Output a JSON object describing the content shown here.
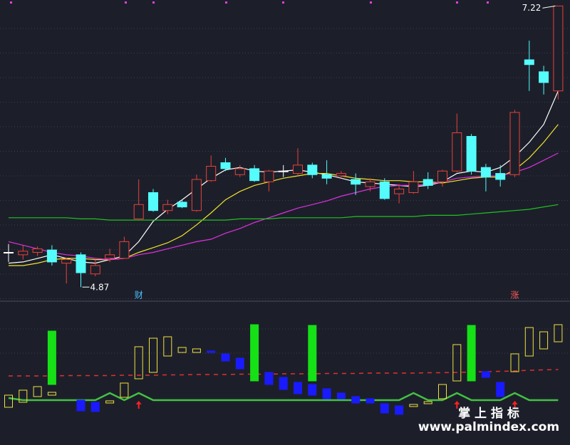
{
  "chart_data": [
    {
      "type": "candlestick",
      "ylim": [
        4.77,
        7.27
      ],
      "up_color": "#e8413a",
      "down_color": "#54fcfc",
      "flat_color": "#ffffff",
      "open": [
        5.16,
        5.14,
        5.16,
        5.18,
        5.07,
        5.14,
        4.98,
        5.11,
        5.11,
        5.44,
        5.66,
        5.51,
        5.58,
        5.51,
        5.76,
        5.91,
        5.81,
        5.86,
        5.75,
        5.84,
        5.82,
        5.89,
        5.81,
        5.8,
        5.77,
        5.71,
        5.75,
        5.65,
        5.66,
        5.77,
        5.75,
        5.84,
        6.13,
        5.87,
        5.82,
        5.81,
        6.77,
        6.67,
        6.51
      ],
      "high": [
        5.23,
        5.22,
        5.21,
        5.22,
        5.11,
        5.16,
        5.1,
        5.19,
        5.29,
        5.77,
        5.69,
        5.6,
        5.6,
        5.81,
        5.97,
        5.95,
        5.89,
        5.89,
        5.85,
        5.89,
        6.03,
        5.91,
        5.93,
        5.84,
        5.82,
        5.78,
        5.78,
        5.73,
        5.84,
        5.83,
        5.85,
        6.32,
        6.15,
        5.9,
        5.89,
        6.35,
        6.93,
        6.72,
        7.22
      ],
      "low": [
        5.08,
        5.1,
        5.13,
        5.05,
        4.9,
        4.87,
        4.96,
        5.08,
        5.11,
        5.44,
        5.5,
        5.48,
        5.53,
        5.5,
        5.75,
        5.84,
        5.79,
        5.75,
        5.67,
        5.79,
        5.8,
        5.78,
        5.73,
        5.78,
        5.64,
        5.67,
        5.6,
        5.57,
        5.65,
        5.69,
        5.71,
        5.83,
        5.81,
        5.67,
        5.71,
        5.79,
        6.51,
        6.48,
        6.44
      ],
      "close": [
        5.16,
        5.17,
        5.19,
        5.08,
        5.1,
        4.99,
        5.05,
        5.14,
        5.25,
        5.56,
        5.51,
        5.56,
        5.54,
        5.77,
        5.88,
        5.86,
        5.86,
        5.76,
        5.84,
        5.84,
        5.89,
        5.81,
        5.78,
        5.82,
        5.73,
        5.75,
        5.61,
        5.69,
        5.75,
        5.72,
        5.84,
        6.16,
        5.84,
        5.79,
        5.77,
        6.33,
        6.73,
        6.58,
        7.22
      ],
      "lines": [
        {
          "color": "#ffffff",
          "values": [
            5.07,
            5.08,
            5.11,
            5.14,
            5.11,
            5.08,
            5.07,
            5.1,
            5.13,
            5.25,
            5.42,
            5.52,
            5.6,
            5.69,
            5.78,
            5.85,
            5.87,
            5.84,
            5.83,
            5.84,
            5.85,
            5.83,
            5.81,
            5.78,
            5.75,
            5.74,
            5.73,
            5.72,
            5.71,
            5.72,
            5.75,
            5.82,
            5.84,
            5.83,
            5.87,
            5.96,
            6.08,
            6.23,
            6.51
          ]
        },
        {
          "color": "#f2e22a",
          "values": [
            5.05,
            5.05,
            5.07,
            5.1,
            5.11,
            5.11,
            5.1,
            5.1,
            5.11,
            5.16,
            5.2,
            5.24,
            5.3,
            5.39,
            5.49,
            5.6,
            5.67,
            5.72,
            5.75,
            5.78,
            5.8,
            5.82,
            5.82,
            5.8,
            5.78,
            5.77,
            5.76,
            5.76,
            5.75,
            5.75,
            5.74,
            5.76,
            5.78,
            5.79,
            5.79,
            5.85,
            5.95,
            6.08,
            6.23
          ]
        },
        {
          "color": "#e030e0",
          "values": [
            5.25,
            5.22,
            5.19,
            5.16,
            5.14,
            5.13,
            5.11,
            5.1,
            5.11,
            5.14,
            5.16,
            5.19,
            5.22,
            5.25,
            5.27,
            5.32,
            5.36,
            5.41,
            5.45,
            5.49,
            5.53,
            5.56,
            5.59,
            5.63,
            5.66,
            5.69,
            5.71,
            5.72,
            5.72,
            5.73,
            5.75,
            5.78,
            5.79,
            5.8,
            5.8,
            5.83,
            5.87,
            5.93,
            5.99
          ]
        },
        {
          "color": "#22c022",
          "values": [
            5.45,
            5.45,
            5.45,
            5.45,
            5.45,
            5.44,
            5.44,
            5.43,
            5.43,
            5.43,
            5.43,
            5.43,
            5.43,
            5.43,
            5.43,
            5.43,
            5.44,
            5.44,
            5.44,
            5.45,
            5.45,
            5.45,
            5.45,
            5.45,
            5.46,
            5.46,
            5.46,
            5.46,
            5.46,
            5.47,
            5.47,
            5.47,
            5.48,
            5.49,
            5.5,
            5.51,
            5.52,
            5.54,
            5.56
          ]
        }
      ],
      "high_label": 7.22,
      "high_index": 38,
      "low_label": 4.87,
      "low_index": 5,
      "annotations": [
        {
          "text": "财",
          "at": 9
        },
        {
          "text": "涨",
          "at": 35
        }
      ]
    },
    {
      "type": "bar",
      "ylim": [
        -1,
        2.6
      ],
      "bars": [
        {
          "color": "#f0e040",
          "hollow": true,
          "low": [
            -0.2,
            -0.06,
            0.1,
            0.14,
            null,
            null,
            null,
            -0.08,
            0.08,
            0.6,
            0.78,
            1.24,
            1.34,
            1.34,
            null,
            null,
            null,
            null,
            null,
            null,
            null,
            null,
            null,
            null,
            null,
            null,
            null,
            null,
            -0.18,
            -0.1,
            0.04,
            0.54,
            null,
            null,
            null,
            0.8,
            1.24,
            1.44,
            1.64
          ],
          "high": [
            0.14,
            0.28,
            0.38,
            0.22,
            null,
            null,
            null,
            -0.02,
            0.48,
            1.5,
            1.74,
            1.78,
            1.48,
            1.44,
            null,
            null,
            null,
            null,
            null,
            null,
            null,
            null,
            null,
            null,
            null,
            null,
            null,
            null,
            -0.12,
            -0.04,
            0.44,
            1.56,
            null,
            null,
            null,
            1.3,
            2.04,
            1.92,
            2.12
          ]
        },
        {
          "color": "#1a1aff",
          "hollow": false,
          "low": [
            null,
            null,
            null,
            null,
            null,
            -0.3,
            -0.32,
            null,
            null,
            null,
            null,
            null,
            null,
            null,
            1.34,
            1.1,
            0.88,
            null,
            0.44,
            0.3,
            0.18,
            0.14,
            0.04,
            0.04,
            -0.08,
            -0.08,
            -0.36,
            -0.4,
            null,
            null,
            null,
            null,
            null,
            0.64,
            0.1,
            null,
            null,
            null,
            null
          ],
          "high": [
            null,
            null,
            null,
            null,
            null,
            0,
            -0.06,
            null,
            null,
            null,
            null,
            null,
            null,
            null,
            1.38,
            1.3,
            1.18,
            null,
            0.78,
            0.64,
            0.5,
            0.44,
            0.32,
            0.2,
            0.1,
            0.04,
            -0.1,
            -0.16,
            null,
            null,
            null,
            null,
            null,
            0.8,
            0.5,
            null,
            null,
            null,
            null
          ]
        },
        {
          "color": "#16e016",
          "hollow": false,
          "low": [
            null,
            null,
            null,
            0.44,
            null,
            null,
            null,
            null,
            null,
            null,
            null,
            null,
            null,
            null,
            null,
            null,
            null,
            0.54,
            null,
            null,
            null,
            0.54,
            null,
            null,
            null,
            null,
            null,
            null,
            null,
            null,
            null,
            null,
            0.54,
            null,
            null,
            null,
            null,
            null,
            null
          ],
          "high": [
            null,
            null,
            null,
            1.94,
            null,
            null,
            null,
            null,
            null,
            null,
            null,
            null,
            null,
            null,
            null,
            null,
            null,
            2.12,
            null,
            null,
            null,
            2.1,
            null,
            null,
            null,
            null,
            null,
            null,
            null,
            null,
            null,
            null,
            2.1,
            null,
            null,
            null,
            null,
            null,
            null
          ]
        }
      ],
      "lines": [
        {
          "color": "#e03030",
          "dashed": true,
          "values": [
            0.68,
            0.68,
            0.68,
            0.68,
            0.69,
            0.69,
            0.69,
            0.69,
            0.7,
            0.7,
            0.7,
            0.71,
            0.71,
            0.72,
            0.72,
            0.72,
            0.73,
            0.73,
            0.73,
            0.74,
            0.74,
            0.74,
            0.75,
            0.75,
            0.75,
            0.76,
            0.76,
            0.76,
            0.76,
            0.77,
            0.77,
            0.78,
            0.79,
            0.8,
            0.81,
            0.82,
            0.84,
            0.85,
            0.86
          ]
        },
        {
          "color": "#44c044",
          "dashed": false,
          "values": [
            0.06,
            0,
            0,
            0,
            0,
            0,
            0,
            0.2,
            0,
            0.2,
            0,
            0,
            0,
            0,
            0,
            0,
            0,
            0,
            0,
            0,
            0,
            0,
            0,
            0,
            0,
            0,
            0,
            0,
            0.2,
            0,
            0,
            0.2,
            0,
            0,
            0,
            0.2,
            0,
            0,
            0
          ]
        }
      ],
      "arrow_at": [
        9,
        31,
        35
      ]
    }
  ],
  "watermark": {
    "title": "掌 上 指 标",
    "url": "www.palmindex.com"
  }
}
